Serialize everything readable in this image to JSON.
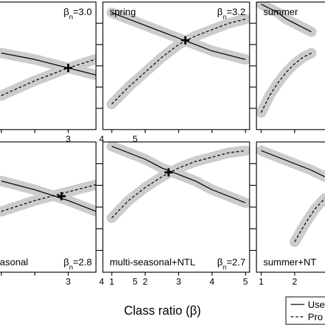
{
  "chart_data": [
    {
      "type": "line",
      "label": "",
      "beta_n": "3.0",
      "xlim": [
        1,
        5
      ],
      "x_ticks": [
        "3",
        "4",
        "5"
      ],
      "series": [
        {
          "name": "Use",
          "style": "solid",
          "x": [
            1,
            2,
            3,
            4,
            5
          ],
          "y": [
            0.66,
            0.63,
            0.59,
            0.55,
            0.51
          ]
        },
        {
          "name": "Pro",
          "style": "dashed",
          "x": [
            1,
            2,
            3,
            4,
            5
          ],
          "y": [
            0.46,
            0.53,
            0.59,
            0.64,
            0.68
          ]
        }
      ],
      "crossing": {
        "x": 3.0,
        "y": 0.59
      }
    },
    {
      "type": "line",
      "label": "spring",
      "beta_n": "3.2",
      "xlim": [
        1,
        5
      ],
      "x_ticks": [],
      "series": [
        {
          "name": "Use",
          "style": "solid",
          "x": [
            1,
            1.5,
            2,
            2.5,
            3,
            3.5,
            4,
            4.5,
            5
          ],
          "y": [
            0.85,
            0.82,
            0.79,
            0.76,
            0.73,
            0.7,
            0.67,
            0.65,
            0.63
          ]
        },
        {
          "name": "Pro",
          "style": "dashed",
          "x": [
            1,
            1.5,
            2,
            2.5,
            3,
            3.5,
            4,
            4.5,
            5
          ],
          "y": [
            0.42,
            0.5,
            0.57,
            0.64,
            0.7,
            0.74,
            0.77,
            0.8,
            0.82
          ]
        }
      ],
      "crossing": {
        "x": 3.2,
        "y": 0.72
      }
    },
    {
      "type": "line",
      "label": "summer",
      "beta_n": "",
      "xlim": [
        1,
        5
      ],
      "x_ticks": [],
      "series": [
        {
          "name": "Use",
          "style": "solid",
          "x": [
            1,
            1.25,
            1.5,
            1.75,
            2,
            2.25,
            2.5
          ],
          "y": [
            0.89,
            0.87,
            0.85,
            0.82,
            0.8,
            0.78,
            0.76
          ]
        },
        {
          "name": "Pro",
          "style": "dashed",
          "x": [
            1,
            1.25,
            1.5,
            1.75,
            2,
            2.25,
            2.5
          ],
          "y": [
            0.38,
            0.46,
            0.52,
            0.57,
            0.61,
            0.64,
            0.66
          ]
        }
      ]
    },
    {
      "type": "line",
      "label": "easonal",
      "beta_n": "2.8",
      "xlim": [
        1,
        5
      ],
      "x_ticks": [
        "3",
        "4",
        "5"
      ],
      "series": [
        {
          "name": "Use",
          "style": "solid",
          "x": [
            1,
            2,
            3,
            4,
            5
          ],
          "y": [
            0.72,
            0.68,
            0.63,
            0.57,
            0.52
          ]
        },
        {
          "name": "Pro",
          "style": "dashed",
          "x": [
            1,
            2,
            3,
            4,
            5
          ],
          "y": [
            0.58,
            0.63,
            0.67,
            0.71,
            0.74
          ]
        }
      ],
      "crossing": {
        "x": 2.8,
        "y": 0.65
      }
    },
    {
      "type": "line",
      "label": "multi-seasonal+NTL",
      "beta_n": "2.7",
      "xlim": [
        1,
        5
      ],
      "x_ticks": [
        "1",
        "2",
        "3",
        "4",
        "5"
      ],
      "series": [
        {
          "name": "Use",
          "style": "solid",
          "x": [
            1,
            1.5,
            2,
            2.5,
            3,
            3.5,
            4,
            4.5,
            5
          ],
          "y": [
            0.88,
            0.85,
            0.82,
            0.78,
            0.75,
            0.72,
            0.68,
            0.65,
            0.62
          ]
        },
        {
          "name": "Pro",
          "style": "dashed",
          "x": [
            1,
            1.5,
            2,
            2.5,
            3,
            3.5,
            4,
            4.5,
            5
          ],
          "y": [
            0.55,
            0.63,
            0.69,
            0.74,
            0.78,
            0.81,
            0.83,
            0.85,
            0.86
          ]
        }
      ],
      "crossing": {
        "x": 2.7,
        "y": 0.76
      }
    },
    {
      "type": "line",
      "label": "summer+NT",
      "beta_n": "",
      "xlim": [
        1,
        5
      ],
      "x_ticks": [
        "1",
        "2"
      ],
      "series": [
        {
          "name": "Use",
          "style": "solid",
          "x": [
            1,
            1.5,
            2,
            2.5,
            2.9
          ],
          "y": [
            0.86,
            0.83,
            0.8,
            0.77,
            0.74
          ]
        },
        {
          "name": "Pro",
          "style": "dashed",
          "x": [
            2.0,
            2.3,
            2.6,
            2.9
          ],
          "y": [
            0.44,
            0.52,
            0.59,
            0.64
          ]
        }
      ]
    }
  ],
  "xlabel": "Class ratio (β)",
  "legend": {
    "placement": "bottom-right",
    "entries": [
      {
        "label": "Use",
        "style": "solid"
      },
      {
        "label": "Pro",
        "style": "dashed"
      }
    ]
  },
  "ylim": [
    0.3,
    0.9
  ],
  "y_ticks": [
    0.4,
    0.5,
    0.6,
    0.7,
    0.8
  ],
  "colors": {
    "line": "#000000",
    "band": "#cccccc",
    "frame": "#000000"
  }
}
